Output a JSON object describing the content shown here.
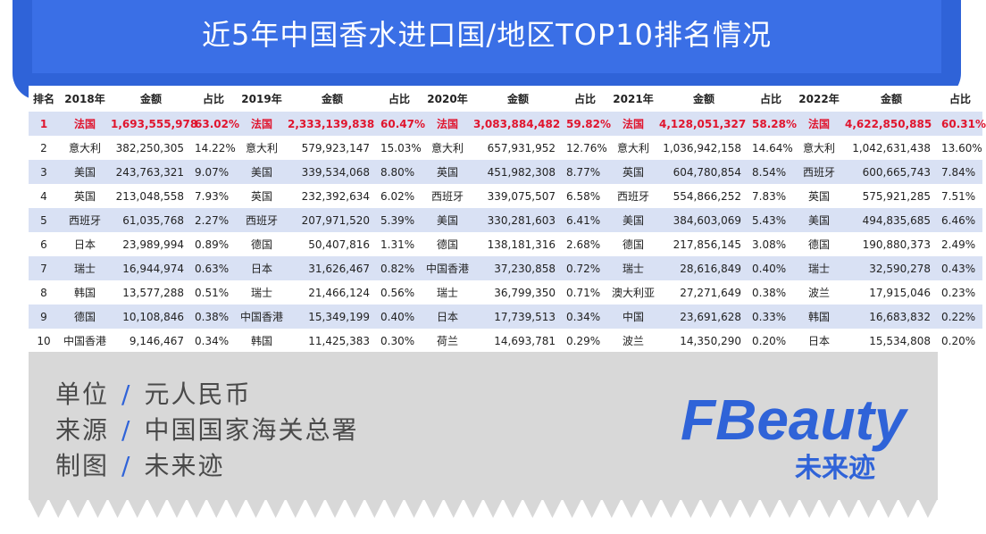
{
  "title": "近5年中国香水进口国/地区TOP10排名情况",
  "chart_data": {
    "type": "table",
    "headers": [
      "排名",
      "2018年",
      "金额",
      "占比",
      "2019年",
      "金额",
      "占比",
      "2020年",
      "金额",
      "占比",
      "2021年",
      "金额",
      "占比",
      "2022年",
      "金额",
      "占比"
    ],
    "rows": [
      [
        "1",
        "法国",
        "1,693,555,978",
        "63.02%",
        "法国",
        "2,333,139,838",
        "60.47%",
        "法国",
        "3,083,884,482",
        "59.82%",
        "法国",
        "4,128,051,327",
        "58.28%",
        "法国",
        "4,622,850,885",
        "60.31%"
      ],
      [
        "2",
        "意大利",
        "382,250,305",
        "14.22%",
        "意大利",
        "579,923,147",
        "15.03%",
        "意大利",
        "657,931,952",
        "12.76%",
        "意大利",
        "1,036,942,158",
        "14.64%",
        "意大利",
        "1,042,631,438",
        "13.60%"
      ],
      [
        "3",
        "美国",
        "243,763,321",
        "9.07%",
        "美国",
        "339,534,068",
        "8.80%",
        "英国",
        "451,982,308",
        "8.77%",
        "英国",
        "604,780,854",
        "8.54%",
        "西班牙",
        "600,665,743",
        "7.84%"
      ],
      [
        "4",
        "英国",
        "213,048,558",
        "7.93%",
        "英国",
        "232,392,634",
        "6.02%",
        "西班牙",
        "339,075,507",
        "6.58%",
        "西班牙",
        "554,866,252",
        "7.83%",
        "英国",
        "575,921,285",
        "7.51%"
      ],
      [
        "5",
        "西班牙",
        "61,035,768",
        "2.27%",
        "西班牙",
        "207,971,520",
        "5.39%",
        "美国",
        "330,281,603",
        "6.41%",
        "美国",
        "384,603,069",
        "5.43%",
        "美国",
        "494,835,685",
        "6.46%"
      ],
      [
        "6",
        "日本",
        "23,989,994",
        "0.89%",
        "德国",
        "50,407,816",
        "1.31%",
        "德国",
        "138,181,316",
        "2.68%",
        "德国",
        "217,856,145",
        "3.08%",
        "德国",
        "190,880,373",
        "2.49%"
      ],
      [
        "7",
        "瑞士",
        "16,944,974",
        "0.63%",
        "日本",
        "31,626,467",
        "0.82%",
        "中国香港",
        "37,230,858",
        "0.72%",
        "瑞士",
        "28,616,849",
        "0.40%",
        "瑞士",
        "32,590,278",
        "0.43%"
      ],
      [
        "8",
        "韩国",
        "13,577,288",
        "0.51%",
        "瑞士",
        "21,466,124",
        "0.56%",
        "瑞士",
        "36,799,350",
        "0.71%",
        "澳大利亚",
        "27,271,649",
        "0.38%",
        "波兰",
        "17,915,046",
        "0.23%"
      ],
      [
        "9",
        "德国",
        "10,108,846",
        "0.38%",
        "中国香港",
        "15,349,199",
        "0.40%",
        "日本",
        "17,739,513",
        "0.34%",
        "中国",
        "23,691,628",
        "0.33%",
        "韩国",
        "16,683,832",
        "0.22%"
      ],
      [
        "10",
        "中国香港",
        "9,146,467",
        "0.34%",
        "韩国",
        "11,425,383",
        "0.30%",
        "荷兰",
        "14,693,781",
        "0.29%",
        "波兰",
        "14,350,290",
        "0.20%",
        "日本",
        "15,534,808",
        "0.20%"
      ]
    ]
  },
  "footer": {
    "lines": [
      {
        "label": "单位",
        "sep": "/",
        "value": "元人民币"
      },
      {
        "label": "来源",
        "sep": "/",
        "value": "中国国家海关总署"
      },
      {
        "label": "制图",
        "sep": "/",
        "value": "未来迹"
      }
    ],
    "logo_text": "FBeauty",
    "logo_sub": "未来迹"
  },
  "colors": {
    "banner": "#2f63d8",
    "highlight": "#e0152e",
    "stripe": "#d9e1f4",
    "footer_bg": "#d8d8d8",
    "logo": "#2f63d8"
  }
}
